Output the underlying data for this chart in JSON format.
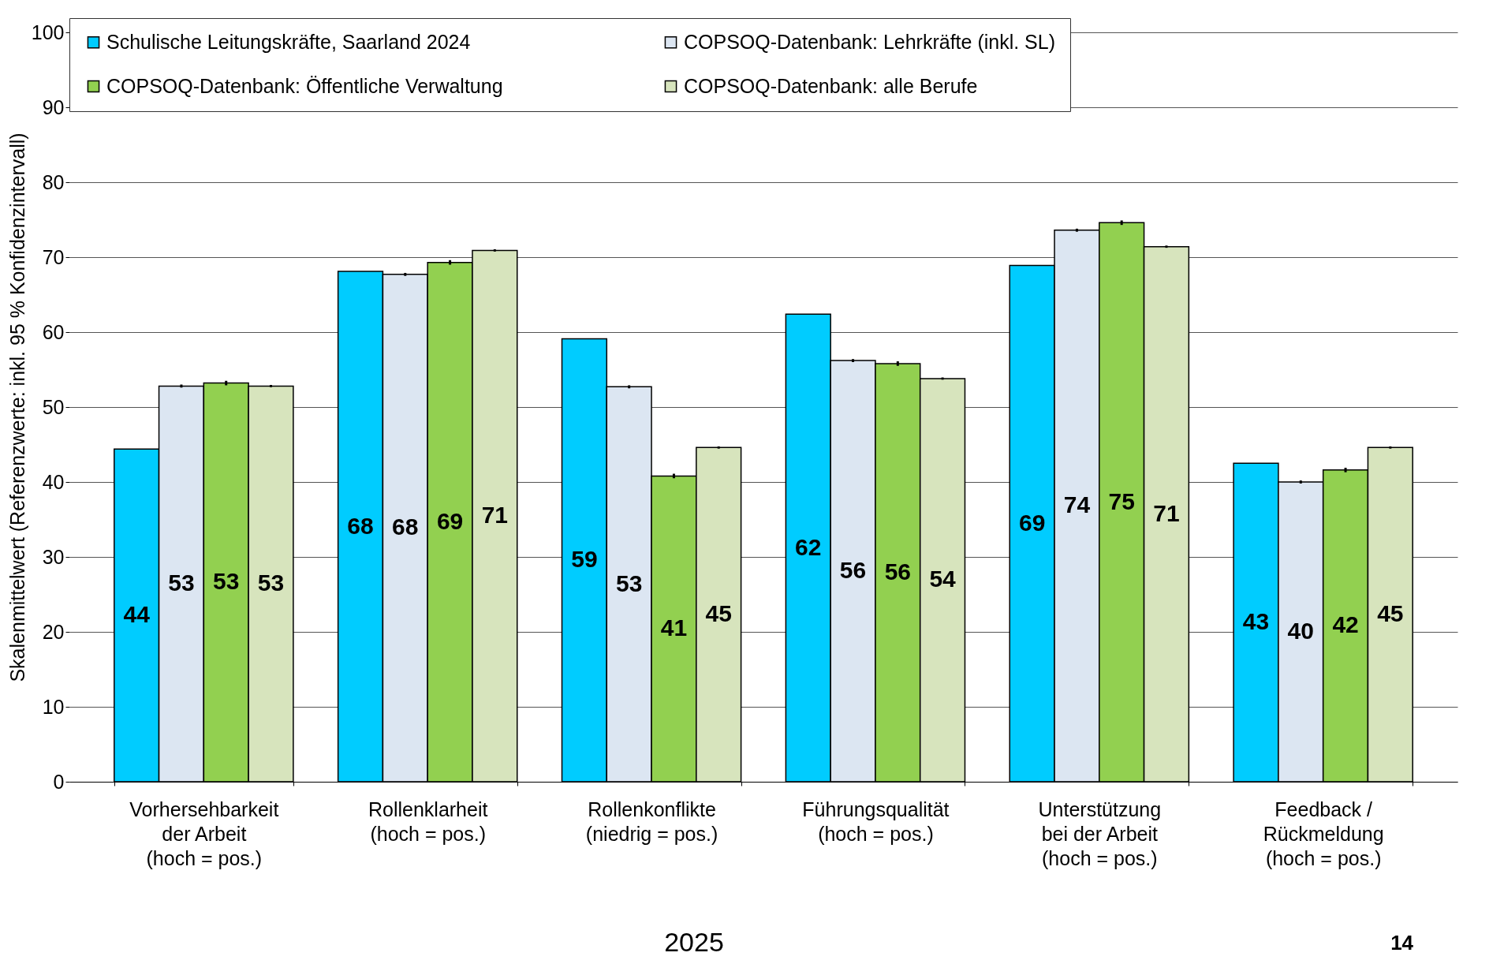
{
  "chart_data": {
    "type": "bar",
    "ylabel": "Skalenmittelwert (Referenzwerte: inkl. 95 % Konfidenzintervall)",
    "categories": [
      "Vorhersehbarkeit\nder Arbeit\n(hoch = pos.)",
      "Rollenklarheit\n(hoch = pos.)",
      "Rollenkonflikte\n(niedrig = pos.)",
      "Führungsqualität\n(hoch = pos.)",
      "Unterstützung\nbei der Arbeit\n(hoch = pos.)",
      "Feedback /\nRückmeldung\n(hoch = pos.)"
    ],
    "series": [
      {
        "name": "Schulische Leitungskräfte, Saarland 2024",
        "color": "#00ccff",
        "values": [
          44.4,
          68.1,
          59.1,
          62.4,
          68.9,
          42.5
        ],
        "value_labels": [
          "44",
          "68",
          "59",
          "62",
          "69",
          "43"
        ]
      },
      {
        "name": "COPSOQ-Datenbank: Lehrkräfte (inkl. SL)",
        "color": "#dce6f2",
        "values": [
          52.8,
          67.7,
          52.7,
          56.2,
          73.6,
          40.0
        ],
        "value_labels": [
          "53",
          "68",
          "53",
          "56",
          "74",
          "40"
        ],
        "errors": [
          0.2,
          0.2,
          0.2,
          0.2,
          0.2,
          0.2
        ]
      },
      {
        "name": "COPSOQ-Datenbank: Öffentliche Verwaltung",
        "color": "#92d050",
        "values": [
          53.2,
          69.3,
          40.8,
          55.8,
          74.6,
          41.6
        ],
        "value_labels": [
          "53",
          "69",
          "41",
          "56",
          "75",
          "42"
        ],
        "errors": [
          0.3,
          0.3,
          0.3,
          0.3,
          0.3,
          0.3
        ]
      },
      {
        "name": "COPSOQ-Datenbank: alle Berufe",
        "color": "#d7e4bd",
        "values": [
          52.8,
          70.9,
          44.6,
          53.8,
          71.4,
          44.6
        ],
        "value_labels": [
          "53",
          "71",
          "45",
          "54",
          "71",
          "45"
        ],
        "errors": [
          0.15,
          0.15,
          0.15,
          0.15,
          0.15,
          0.15
        ]
      }
    ],
    "ylim": [
      0,
      100
    ],
    "yticks": [
      0,
      10,
      20,
      30,
      40,
      50,
      60,
      70,
      80,
      90,
      100
    ],
    "grid": "y",
    "legend": "top",
    "annotations": [
      "2025",
      "14"
    ]
  }
}
